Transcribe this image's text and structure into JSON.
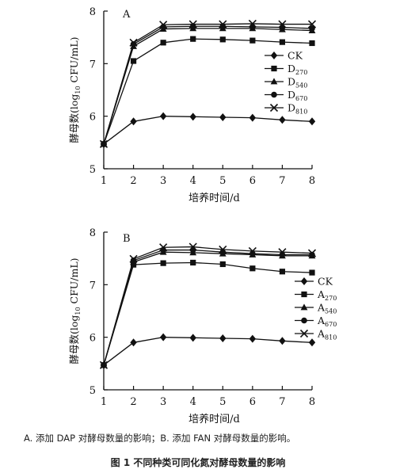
{
  "chart_data": [
    {
      "type": "line",
      "panel_label": "A",
      "x": [
        1,
        2,
        3,
        4,
        5,
        6,
        7,
        8
      ],
      "xlabel": "培养时间/d",
      "ylabel": "酵母数(log10 CFU/mL)",
      "ylabel_parts": [
        "酵母数(log",
        "10",
        " CFU/mL)"
      ],
      "xlim": [
        1,
        8
      ],
      "ylim": [
        5,
        8
      ],
      "xticks": [
        1,
        2,
        3,
        4,
        5,
        6,
        7,
        8
      ],
      "yticks": [
        5,
        6,
        7,
        8
      ],
      "grid": false,
      "legend_position": "right-middle",
      "series": [
        {
          "name": "CK",
          "label_main": "CK",
          "label_sub": "",
          "marker": "diamond",
          "values": [
            5.47,
            5.9,
            6.0,
            5.99,
            5.98,
            5.97,
            5.93,
            5.9
          ]
        },
        {
          "name": "D270",
          "label_main": "D",
          "label_sub": "270",
          "marker": "square",
          "values": [
            5.47,
            7.05,
            7.4,
            7.47,
            7.46,
            7.44,
            7.41,
            7.39
          ]
        },
        {
          "name": "D540",
          "label_main": "D",
          "label_sub": "540",
          "marker": "triangle",
          "values": [
            5.47,
            7.33,
            7.66,
            7.67,
            7.67,
            7.67,
            7.65,
            7.63
          ]
        },
        {
          "name": "D670",
          "label_main": "D",
          "label_sub": "670",
          "marker": "circle",
          "values": [
            5.47,
            7.37,
            7.7,
            7.71,
            7.71,
            7.7,
            7.69,
            7.67
          ]
        },
        {
          "name": "D810",
          "label_main": "D",
          "label_sub": "810",
          "marker": "x",
          "values": [
            5.47,
            7.4,
            7.74,
            7.75,
            7.75,
            7.76,
            7.75,
            7.75
          ]
        }
      ]
    },
    {
      "type": "line",
      "panel_label": "B",
      "x": [
        1,
        2,
        3,
        4,
        5,
        6,
        7,
        8
      ],
      "xlabel": "培养时间/d",
      "ylabel": "酵母数(log10 CFU/mL)",
      "ylabel_parts": [
        "酵母数(log",
        "10",
        " CFU/mL)"
      ],
      "xlim": [
        1,
        8
      ],
      "ylim": [
        5,
        8
      ],
      "xticks": [
        1,
        2,
        3,
        4,
        5,
        6,
        7,
        8
      ],
      "yticks": [
        5,
        6,
        7,
        8
      ],
      "grid": false,
      "legend_position": "right-middle",
      "series": [
        {
          "name": "CK",
          "label_main": "CK",
          "label_sub": "",
          "marker": "diamond",
          "values": [
            5.47,
            5.9,
            6.0,
            5.99,
            5.98,
            5.97,
            5.93,
            5.9
          ]
        },
        {
          "name": "A270",
          "label_main": "A",
          "label_sub": "270",
          "marker": "square",
          "values": [
            5.47,
            7.38,
            7.41,
            7.42,
            7.39,
            7.31,
            7.25,
            7.23
          ]
        },
        {
          "name": "A540",
          "label_main": "A",
          "label_sub": "540",
          "marker": "triangle",
          "values": [
            5.47,
            7.43,
            7.62,
            7.61,
            7.59,
            7.57,
            7.55,
            7.55
          ]
        },
        {
          "name": "A670",
          "label_main": "A",
          "label_sub": "670",
          "marker": "circle",
          "values": [
            5.47,
            7.46,
            7.66,
            7.66,
            7.62,
            7.59,
            7.57,
            7.57
          ]
        },
        {
          "name": "A810",
          "label_main": "A",
          "label_sub": "810",
          "marker": "x",
          "values": [
            5.47,
            7.49,
            7.71,
            7.72,
            7.67,
            7.64,
            7.62,
            7.6
          ]
        }
      ]
    }
  ],
  "captions": {
    "note": "A. 添加 DAP 对酵母数量的影响；B. 添加 FAN 对酵母数量的影响。",
    "title": "图 1   不同种类可同化氮对酵母数量的影响"
  },
  "colors": {
    "line": "#111111",
    "axis": "#111111",
    "background": "#ffffff"
  }
}
